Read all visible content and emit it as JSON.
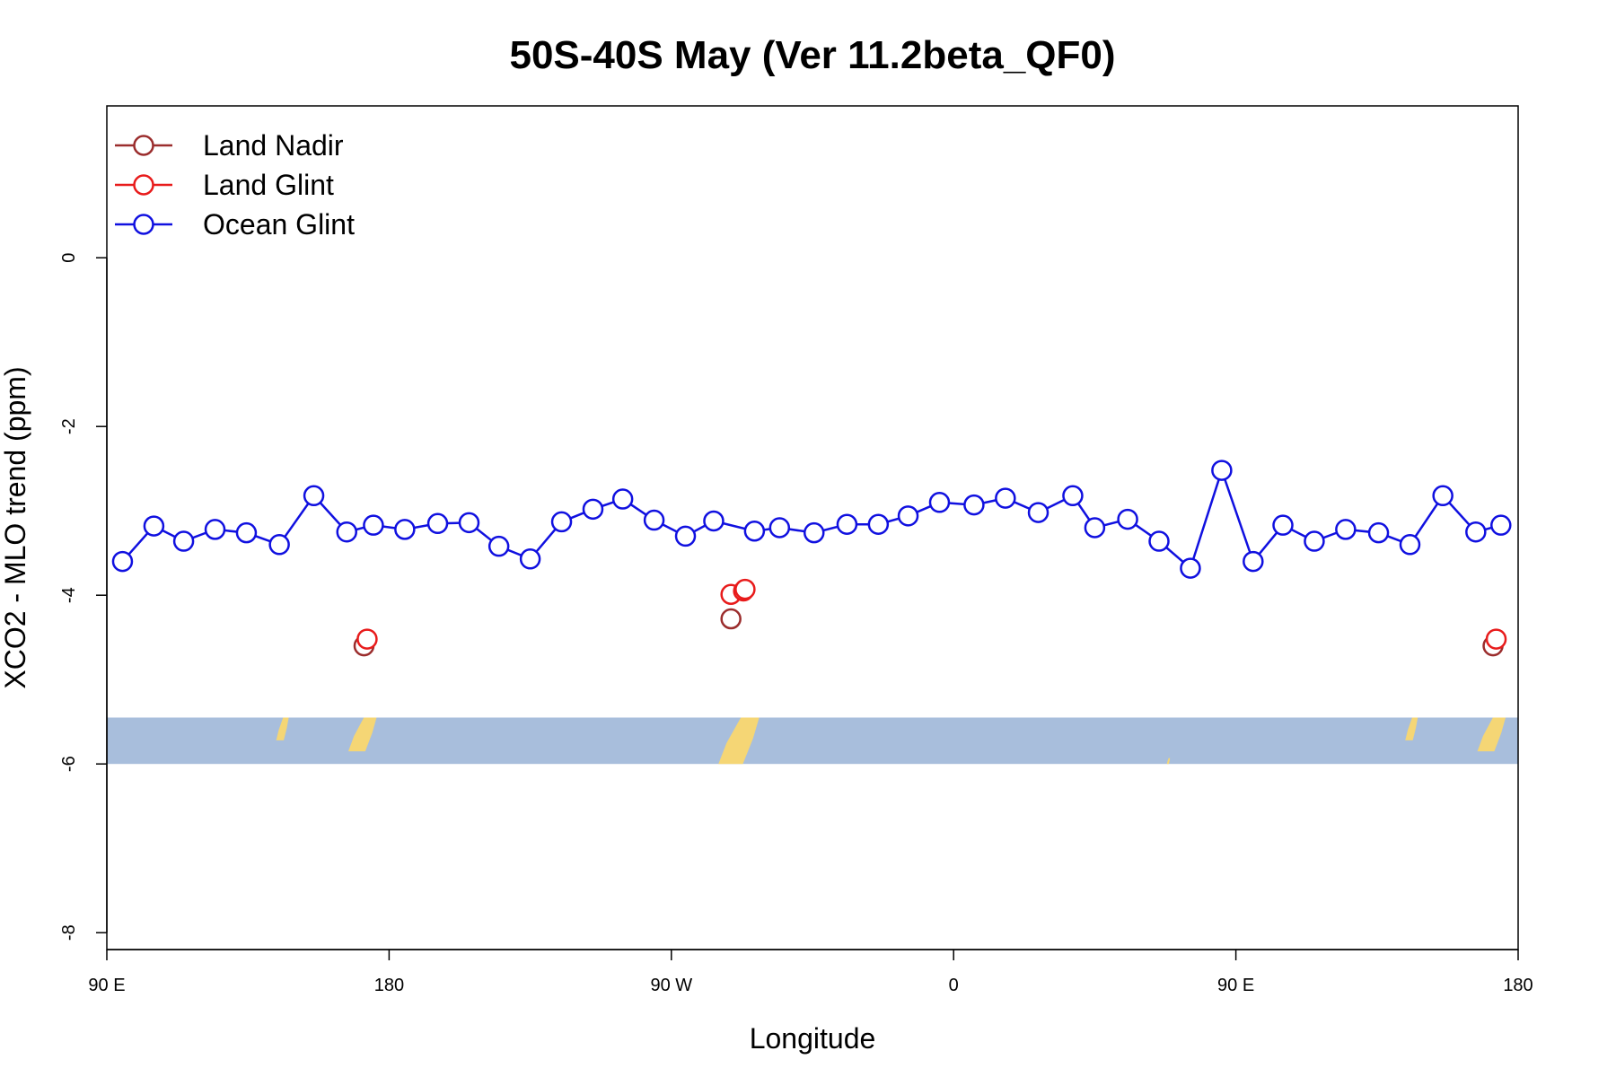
{
  "chart_data": {
    "type": "line",
    "title": "50S-40S May (Ver 11.2beta_QF0)",
    "xlabel": "Longitude",
    "ylabel": "XCO2 - MLO trend (ppm)",
    "x_domain": "longitude east of 90 E, wrapping through 180 to 180",
    "xlim": [
      0,
      450
    ],
    "ylim": [
      -8.2,
      1.8
    ],
    "x_ticks": [
      {
        "value": 0,
        "label": "90 E"
      },
      {
        "value": 90,
        "label": "180"
      },
      {
        "value": 180,
        "label": "90 W"
      },
      {
        "value": 270,
        "label": "0"
      },
      {
        "value": 360,
        "label": "90 E"
      },
      {
        "value": 450,
        "label": "180"
      }
    ],
    "y_ticks": [
      {
        "value": 0,
        "label": "0"
      },
      {
        "value": -2,
        "label": "-2"
      },
      {
        "value": -4,
        "label": "-4"
      },
      {
        "value": -6,
        "label": "-6"
      },
      {
        "value": -8,
        "label": "-8"
      }
    ],
    "grid": false,
    "legend_position": "top-left",
    "map_strip": {
      "y_range": [
        -6.0,
        -5.45
      ],
      "ocean_color": "#a8bedc",
      "land_color": "#f5d675",
      "land_segments": [
        {
          "x": [
            54,
            58
          ],
          "y": [
            -5.45,
            -5.72
          ]
        },
        {
          "x": [
            77,
            86
          ],
          "y": [
            -5.45,
            -5.85
          ]
        },
        {
          "x": [
            195,
            208
          ],
          "y": [
            -5.45,
            -6.0
          ]
        },
        {
          "x": [
            338,
            339
          ],
          "y": [
            -5.93,
            -6.0
          ]
        },
        {
          "x": [
            414,
            418
          ],
          "y": [
            -5.45,
            -5.72
          ]
        },
        {
          "x": [
            437,
            446
          ],
          "y": [
            -5.45,
            -5.85
          ]
        }
      ]
    },
    "series": [
      {
        "name": "Land Nadir",
        "color": "#9b2d2d",
        "points": [
          [
            82,
            -4.6
          ],
          [
            199,
            -4.28
          ],
          [
            442,
            -4.6
          ]
        ]
      },
      {
        "name": "Land Glint",
        "color": "#e81b1b",
        "points": [
          [
            83,
            -4.52
          ],
          [
            199,
            -3.99
          ],
          [
            203,
            -3.95
          ],
          [
            203.5,
            -3.93
          ],
          [
            443,
            -4.52
          ]
        ]
      },
      {
        "name": "Ocean Glint",
        "color": "#1010e0",
        "points": [
          [
            5,
            -3.6
          ],
          [
            15,
            -3.18
          ],
          [
            24.5,
            -3.36
          ],
          [
            34.5,
            -3.22
          ],
          [
            44.5,
            -3.26
          ],
          [
            55,
            -3.4
          ],
          [
            66,
            -2.82
          ],
          [
            76.5,
            -3.25
          ],
          [
            85,
            -3.17
          ],
          [
            95,
            -3.22
          ],
          [
            105.5,
            -3.15
          ],
          [
            115.5,
            -3.14
          ],
          [
            125,
            -3.42
          ],
          [
            135,
            -3.57
          ],
          [
            145,
            -3.13
          ],
          [
            155,
            -2.98
          ],
          [
            164.5,
            -2.86
          ],
          [
            174.5,
            -3.11
          ],
          [
            184.5,
            -3.3
          ],
          [
            193.5,
            -3.12
          ],
          [
            206.5,
            -3.24
          ],
          [
            214.5,
            -3.2
          ],
          [
            225.5,
            -3.26
          ],
          [
            236,
            -3.16
          ],
          [
            246,
            -3.16
          ],
          [
            255.5,
            -3.06
          ],
          [
            265.5,
            -2.9
          ],
          [
            276.5,
            -2.93
          ],
          [
            286.5,
            -2.85
          ],
          [
            297,
            -3.02
          ],
          [
            308,
            -2.82
          ],
          [
            315,
            -3.2
          ],
          [
            325.5,
            -3.1
          ],
          [
            335.5,
            -3.36
          ],
          [
            345.5,
            -3.68
          ],
          [
            355.5,
            -2.52
          ],
          [
            365.5,
            -3.6
          ],
          [
            375,
            -3.17
          ],
          [
            385,
            -3.36
          ],
          [
            395,
            -3.22
          ],
          [
            405.5,
            -3.26
          ],
          [
            415.5,
            -3.4
          ],
          [
            426,
            -2.82
          ],
          [
            436.5,
            -3.25
          ],
          [
            444.5,
            -3.17
          ]
        ]
      }
    ]
  }
}
